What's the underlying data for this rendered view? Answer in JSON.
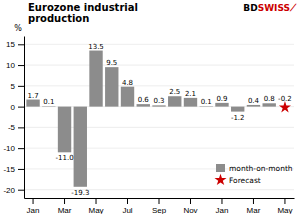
{
  "chart_data": {
    "type": "bar",
    "title": "Eurozone industrial\nproduction",
    "y_label": "%",
    "categories": [
      "Jan",
      null,
      "Mar",
      null,
      "May",
      null,
      "Jul",
      null,
      "Sep",
      null,
      "Nov",
      null,
      "Jan",
      null,
      "Mar",
      null,
      "May"
    ],
    "series": [
      {
        "name": "month-on-month",
        "type": "bar",
        "color": "#8c8c8c",
        "values": [
          1.7,
          0.1,
          -11.0,
          -19.3,
          13.5,
          9.5,
          4.8,
          0.6,
          0.3,
          2.5,
          2.1,
          0.1,
          0.9,
          -1.2,
          0.4,
          0.8,
          null
        ],
        "value_labels": [
          "1.7",
          "0.1",
          "-11.0",
          "-19.3",
          "13.5",
          "9.5",
          "4.8",
          "0.6",
          "0.3",
          "2.5",
          "2.1",
          "0.1",
          "0.9",
          "-1.2",
          "0.4",
          "0.8",
          null
        ]
      },
      {
        "name": "Forecast",
        "type": "scatter",
        "marker": "star",
        "color": "#cc0000",
        "values": [
          null,
          null,
          null,
          null,
          null,
          null,
          null,
          null,
          null,
          null,
          null,
          null,
          null,
          null,
          null,
          null,
          -0.2
        ],
        "value_labels": [
          null,
          null,
          null,
          null,
          null,
          null,
          null,
          null,
          null,
          null,
          null,
          null,
          null,
          null,
          null,
          null,
          "-0.2"
        ]
      }
    ],
    "ylim": [
      -22,
      17
    ],
    "yticks": [
      -20,
      -15,
      -10,
      -5,
      0,
      5,
      10,
      15
    ],
    "grid": true,
    "legend": "lower right",
    "data_labels": true,
    "annotations": [
      {
        "text": "BD"
      },
      {
        "text": "SWISS",
        "color": "#cc0000"
      },
      {
        "text": "⟋",
        "color": "#cc0000"
      }
    ]
  }
}
